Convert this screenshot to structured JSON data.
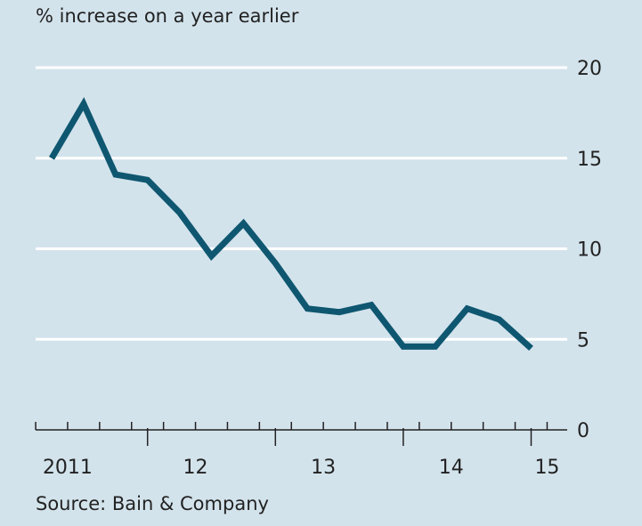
{
  "subtitle": "% increase on a year earlier",
  "source": "Source: Bain & Company",
  "chart_data": {
    "type": "line",
    "title": "",
    "ylabel": "% increase on a year earlier",
    "xlabel": "",
    "ylim": [
      0,
      20
    ],
    "yticks": [
      0,
      5,
      10,
      15,
      20
    ],
    "grid": true,
    "y_axis_position": "right",
    "x_tick_labels": [
      {
        "label": "2011",
        "quarter": 1
      },
      {
        "label": "12",
        "quarter": 5
      },
      {
        "label": "13",
        "quarter": 9
      },
      {
        "label": "14",
        "quarter": 13
      },
      {
        "label": "15",
        "quarter": 16
      }
    ],
    "x_minor_ticks": 17,
    "x_major_tick_quarters": [
      3,
      7,
      11,
      15
    ],
    "series": [
      {
        "name": "% increase on a year earlier",
        "color": "#0f5770",
        "x": [
          0,
          1,
          2,
          3,
          4,
          5,
          6,
          7,
          8,
          9,
          10,
          11,
          12,
          13,
          14,
          15
        ],
        "values": [
          15.0,
          18.0,
          14.1,
          13.8,
          12.0,
          9.6,
          11.4,
          9.2,
          6.7,
          6.5,
          6.9,
          4.6,
          4.6,
          6.7,
          6.1,
          4.5
        ]
      }
    ]
  }
}
